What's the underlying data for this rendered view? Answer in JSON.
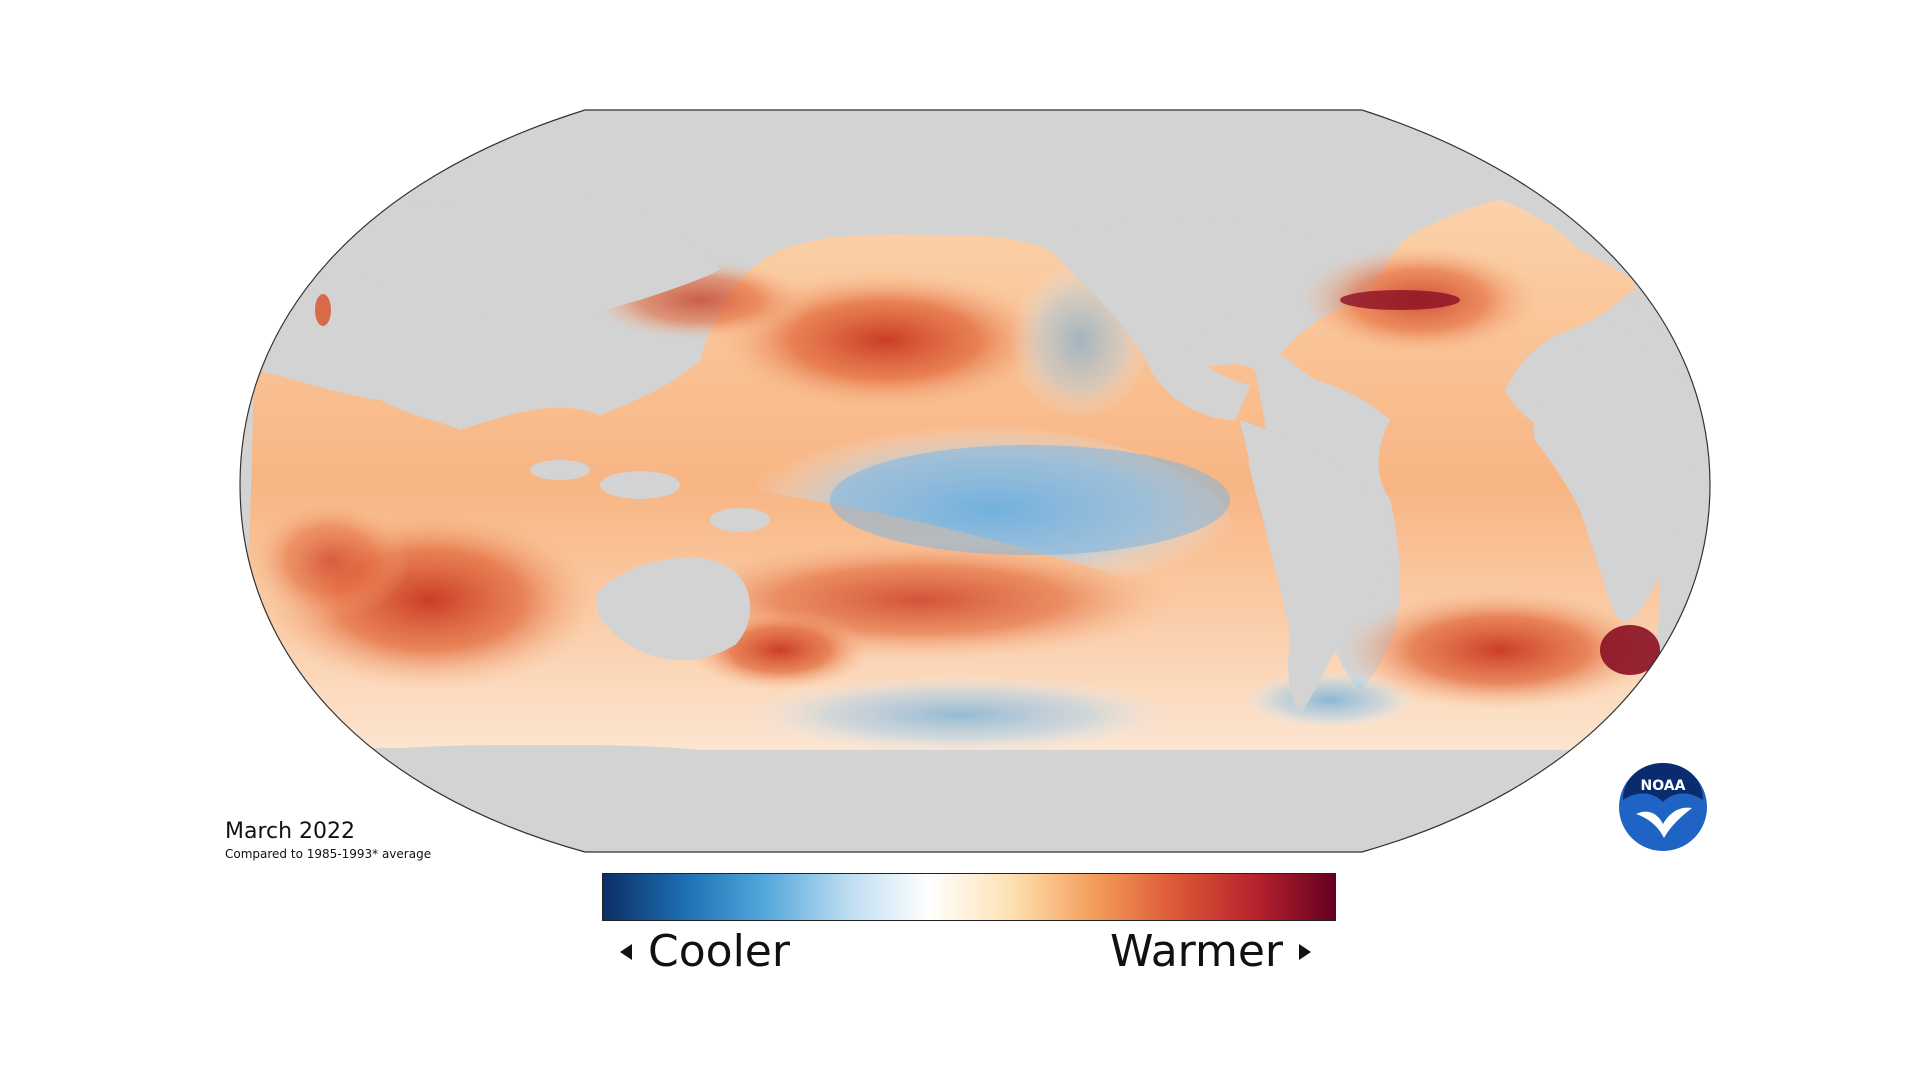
{
  "caption": {
    "title": "March 2022",
    "subtitle": "Compared to 1985-1993* average"
  },
  "legend": {
    "low_label": "Cooler",
    "high_label": "Warmer",
    "gradient_colors": [
      "#0b2e66",
      "#1d6fb2",
      "#55a8dc",
      "#bcdcf0",
      "#ffffff",
      "#fde2b4",
      "#f4a05c",
      "#de5a37",
      "#b8232d",
      "#650020"
    ]
  },
  "logo": {
    "text": "NOAA",
    "colors": {
      "outer": "#1f63c4",
      "inner": "#ffffff",
      "top": "#0a2c6f"
    }
  },
  "colors": {
    "land": "#d3d3d3",
    "frame_stroke": "#333333",
    "warm": "#f4a05c",
    "hot": "#cc3d2a",
    "cool": "#8ec3e6",
    "cold": "#2f7fc1"
  }
}
